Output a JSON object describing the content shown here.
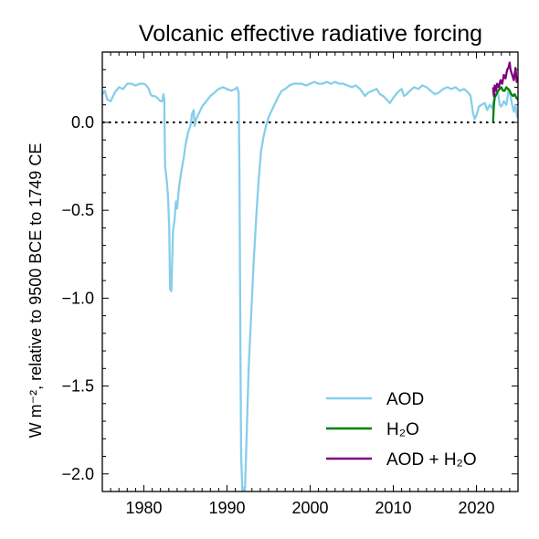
{
  "chart_data": {
    "type": "line",
    "title": "Volcanic effective radiative forcing",
    "ylabel": "W m⁻², relative to 9500 BCE to 1749 CE",
    "xlabel": "",
    "xlim": [
      1975,
      2025
    ],
    "ylim": [
      -2.1,
      0.4
    ],
    "xticks": [
      1980,
      1990,
      2000,
      2010,
      2020
    ],
    "yticks": [
      0.0,
      -0.5,
      -1.0,
      -1.5,
      -2.0
    ],
    "ytick_labels": [
      "0.0",
      "−0.5",
      "−1.0",
      "−1.5",
      "−2.0"
    ],
    "zero_line": "dotted",
    "grid": false,
    "legend_position": "lower-right",
    "series": [
      {
        "name": "AOD",
        "color": "#87ceeb",
        "points": [
          [
            1975.0,
            0.16
          ],
          [
            1975.3,
            0.18
          ],
          [
            1975.6,
            0.13
          ],
          [
            1976.0,
            0.12
          ],
          [
            1976.5,
            0.17
          ],
          [
            1977.0,
            0.2
          ],
          [
            1977.5,
            0.19
          ],
          [
            1978.0,
            0.22
          ],
          [
            1978.5,
            0.22
          ],
          [
            1979.0,
            0.21
          ],
          [
            1979.5,
            0.22
          ],
          [
            1980.0,
            0.22
          ],
          [
            1980.3,
            0.21
          ],
          [
            1980.6,
            0.19
          ],
          [
            1980.8,
            0.16
          ],
          [
            1981.0,
            0.15
          ],
          [
            1981.3,
            0.15
          ],
          [
            1981.6,
            0.14
          ],
          [
            1981.8,
            0.13
          ],
          [
            1982.0,
            0.12
          ],
          [
            1982.2,
            0.12
          ],
          [
            1982.35,
            0.16
          ],
          [
            1982.45,
            0.13
          ],
          [
            1982.55,
            -0.25
          ],
          [
            1982.75,
            -0.33
          ],
          [
            1982.9,
            -0.42
          ],
          [
            1983.05,
            -0.6
          ],
          [
            1983.15,
            -0.95
          ],
          [
            1983.3,
            -0.96
          ],
          [
            1983.5,
            -0.62
          ],
          [
            1983.7,
            -0.55
          ],
          [
            1983.85,
            -0.45
          ],
          [
            1984.0,
            -0.49
          ],
          [
            1984.2,
            -0.38
          ],
          [
            1984.5,
            -0.28
          ],
          [
            1984.8,
            -0.2
          ],
          [
            1985.0,
            -0.13
          ],
          [
            1985.3,
            -0.06
          ],
          [
            1985.6,
            -0.02
          ],
          [
            1985.8,
            0.05
          ],
          [
            1986.0,
            0.07
          ],
          [
            1986.1,
            -0.02
          ],
          [
            1986.3,
            0.02
          ],
          [
            1986.6,
            0.05
          ],
          [
            1987.0,
            0.09
          ],
          [
            1987.5,
            0.12
          ],
          [
            1988.0,
            0.15
          ],
          [
            1988.5,
            0.17
          ],
          [
            1989.0,
            0.19
          ],
          [
            1989.5,
            0.2
          ],
          [
            1990.0,
            0.19
          ],
          [
            1990.5,
            0.18
          ],
          [
            1991.0,
            0.19
          ],
          [
            1991.2,
            0.2
          ],
          [
            1991.4,
            0.17
          ],
          [
            1991.5,
            -0.3
          ],
          [
            1991.6,
            -1.2
          ],
          [
            1991.7,
            -1.9
          ],
          [
            1991.85,
            -2.1
          ],
          [
            1992.0,
            -2.08
          ],
          [
            1992.15,
            -2.1
          ],
          [
            1992.35,
            -1.8
          ],
          [
            1992.6,
            -1.4
          ],
          [
            1992.9,
            -1.1
          ],
          [
            1993.2,
            -0.8
          ],
          [
            1993.5,
            -0.55
          ],
          [
            1993.8,
            -0.33
          ],
          [
            1994.1,
            -0.16
          ],
          [
            1994.4,
            -0.08
          ],
          [
            1994.7,
            -0.02
          ],
          [
            1995.0,
            0.03
          ],
          [
            1995.4,
            0.07
          ],
          [
            1995.8,
            0.11
          ],
          [
            1996.2,
            0.15
          ],
          [
            1996.6,
            0.18
          ],
          [
            1997.0,
            0.19
          ],
          [
            1997.5,
            0.21
          ],
          [
            1998.0,
            0.22
          ],
          [
            1998.5,
            0.22
          ],
          [
            1999.0,
            0.22
          ],
          [
            1999.5,
            0.21
          ],
          [
            2000.0,
            0.22
          ],
          [
            2000.5,
            0.23
          ],
          [
            2001.0,
            0.22
          ],
          [
            2001.5,
            0.22
          ],
          [
            2002.0,
            0.23
          ],
          [
            2002.5,
            0.22
          ],
          [
            2003.0,
            0.23
          ],
          [
            2003.5,
            0.22
          ],
          [
            2004.0,
            0.22
          ],
          [
            2004.5,
            0.21
          ],
          [
            2005.0,
            0.2
          ],
          [
            2005.5,
            0.21
          ],
          [
            2006.0,
            0.19
          ],
          [
            2006.3,
            0.17
          ],
          [
            2006.6,
            0.15
          ],
          [
            2007.0,
            0.17
          ],
          [
            2007.5,
            0.18
          ],
          [
            2008.0,
            0.19
          ],
          [
            2008.4,
            0.16
          ],
          [
            2008.8,
            0.15
          ],
          [
            2009.2,
            0.13
          ],
          [
            2009.6,
            0.11
          ],
          [
            2010.0,
            0.14
          ],
          [
            2010.5,
            0.17
          ],
          [
            2011.0,
            0.19
          ],
          [
            2011.3,
            0.15
          ],
          [
            2011.6,
            0.16
          ],
          [
            2012.0,
            0.18
          ],
          [
            2012.5,
            0.2
          ],
          [
            2013.0,
            0.19
          ],
          [
            2013.5,
            0.21
          ],
          [
            2014.0,
            0.2
          ],
          [
            2014.5,
            0.18
          ],
          [
            2015.0,
            0.16
          ],
          [
            2015.5,
            0.17
          ],
          [
            2016.0,
            0.19
          ],
          [
            2016.5,
            0.2
          ],
          [
            2017.0,
            0.19
          ],
          [
            2017.5,
            0.2
          ],
          [
            2018.0,
            0.18
          ],
          [
            2018.5,
            0.19
          ],
          [
            2019.0,
            0.17
          ],
          [
            2019.3,
            0.15
          ],
          [
            2019.6,
            0.05
          ],
          [
            2019.8,
            0.02
          ],
          [
            2020.0,
            0.04
          ],
          [
            2020.3,
            0.09
          ],
          [
            2020.6,
            0.1
          ],
          [
            2021.0,
            0.11
          ],
          [
            2021.3,
            0.07
          ],
          [
            2021.6,
            0.1
          ],
          [
            2021.9,
            0.08
          ],
          [
            2022.1,
            0.13
          ],
          [
            2022.3,
            0.16
          ],
          [
            2022.6,
            0.17
          ],
          [
            2022.8,
            0.1
          ],
          [
            2023.0,
            0.09
          ],
          [
            2023.3,
            0.12
          ],
          [
            2023.6,
            0.1
          ],
          [
            2023.9,
            0.19
          ],
          [
            2024.1,
            0.15
          ],
          [
            2024.3,
            0.1
          ],
          [
            2024.5,
            0.06
          ],
          [
            2024.7,
            0.1
          ],
          [
            2024.9,
            0.03
          ],
          [
            2025.0,
            0.06
          ]
        ]
      },
      {
        "name": "H₂O",
        "color": "#008000",
        "points": [
          [
            2022.0,
            0.0
          ],
          [
            2022.05,
            0.05
          ],
          [
            2022.1,
            0.1
          ],
          [
            2022.2,
            0.14
          ],
          [
            2022.4,
            0.16
          ],
          [
            2022.6,
            0.18
          ],
          [
            2022.8,
            0.19
          ],
          [
            2023.0,
            0.2
          ],
          [
            2023.2,
            0.18
          ],
          [
            2023.4,
            0.18
          ],
          [
            2023.6,
            0.2
          ],
          [
            2023.8,
            0.19
          ],
          [
            2024.0,
            0.18
          ],
          [
            2024.2,
            0.16
          ],
          [
            2024.4,
            0.15
          ],
          [
            2024.6,
            0.16
          ],
          [
            2024.8,
            0.14
          ],
          [
            2025.0,
            0.13
          ]
        ]
      },
      {
        "name": "AOD + H₂O",
        "color": "#800080",
        "points": [
          [
            2022.0,
            0.2
          ],
          [
            2022.1,
            0.15
          ],
          [
            2022.2,
            0.21
          ],
          [
            2022.35,
            0.18
          ],
          [
            2022.5,
            0.22
          ],
          [
            2022.7,
            0.2
          ],
          [
            2022.9,
            0.24
          ],
          [
            2023.1,
            0.22
          ],
          [
            2023.3,
            0.27
          ],
          [
            2023.5,
            0.25
          ],
          [
            2023.7,
            0.3
          ],
          [
            2023.85,
            0.31
          ],
          [
            2024.0,
            0.34
          ],
          [
            2024.1,
            0.3
          ],
          [
            2024.3,
            0.27
          ],
          [
            2024.5,
            0.24
          ],
          [
            2024.7,
            0.31
          ],
          [
            2024.85,
            0.23
          ],
          [
            2025.0,
            0.26
          ]
        ]
      }
    ]
  }
}
